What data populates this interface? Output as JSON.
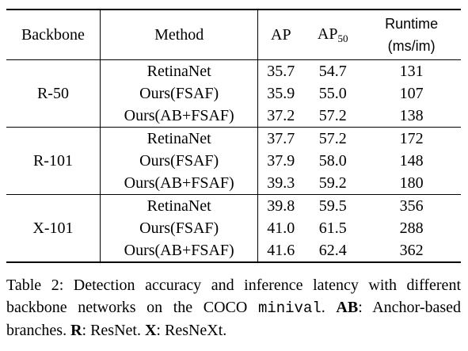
{
  "table": {
    "headers": {
      "backbone": "Backbone",
      "method": "Method",
      "ap": "AP",
      "ap50_main": "AP",
      "ap50_sub": "50",
      "runtime_line1": "Runtime",
      "runtime_line2": "(ms/im)"
    },
    "groups": [
      {
        "backbone": "R-50",
        "rows": [
          {
            "method": "RetinaNet",
            "ap": "35.7",
            "ap50": "54.7",
            "runtime": "131"
          },
          {
            "method": "Ours(FSAF)",
            "ap": "35.9",
            "ap50": "55.0",
            "runtime": "107"
          },
          {
            "method": "Ours(AB+FSAF)",
            "ap": "37.2",
            "ap50": "57.2",
            "runtime": "138"
          }
        ]
      },
      {
        "backbone": "R-101",
        "rows": [
          {
            "method": "RetinaNet",
            "ap": "37.7",
            "ap50": "57.2",
            "runtime": "172"
          },
          {
            "method": "Ours(FSAF)",
            "ap": "37.9",
            "ap50": "58.0",
            "runtime": "148"
          },
          {
            "method": "Ours(AB+FSAF)",
            "ap": "39.3",
            "ap50": "59.2",
            "runtime": "180"
          }
        ]
      },
      {
        "backbone": "X-101",
        "rows": [
          {
            "method": "RetinaNet",
            "ap": "39.8",
            "ap50": "59.5",
            "runtime": "356"
          },
          {
            "method": "Ours(FSAF)",
            "ap": "41.0",
            "ap50": "61.5",
            "runtime": "288"
          },
          {
            "method": "Ours(AB+FSAF)",
            "ap": "41.6",
            "ap50": "62.4",
            "runtime": "362"
          }
        ]
      }
    ]
  },
  "caption": {
    "lead": "Table 2: Detection accuracy and inference latency with different backbone networks on the COCO ",
    "mono": "minival",
    "after_mono": ". ",
    "ab_key": "AB",
    "ab_text": ": Anchor-based branches. ",
    "r_key": "R",
    "r_text": ": ResNet. ",
    "x_key": "X",
    "x_text": ": ResNeXt."
  }
}
